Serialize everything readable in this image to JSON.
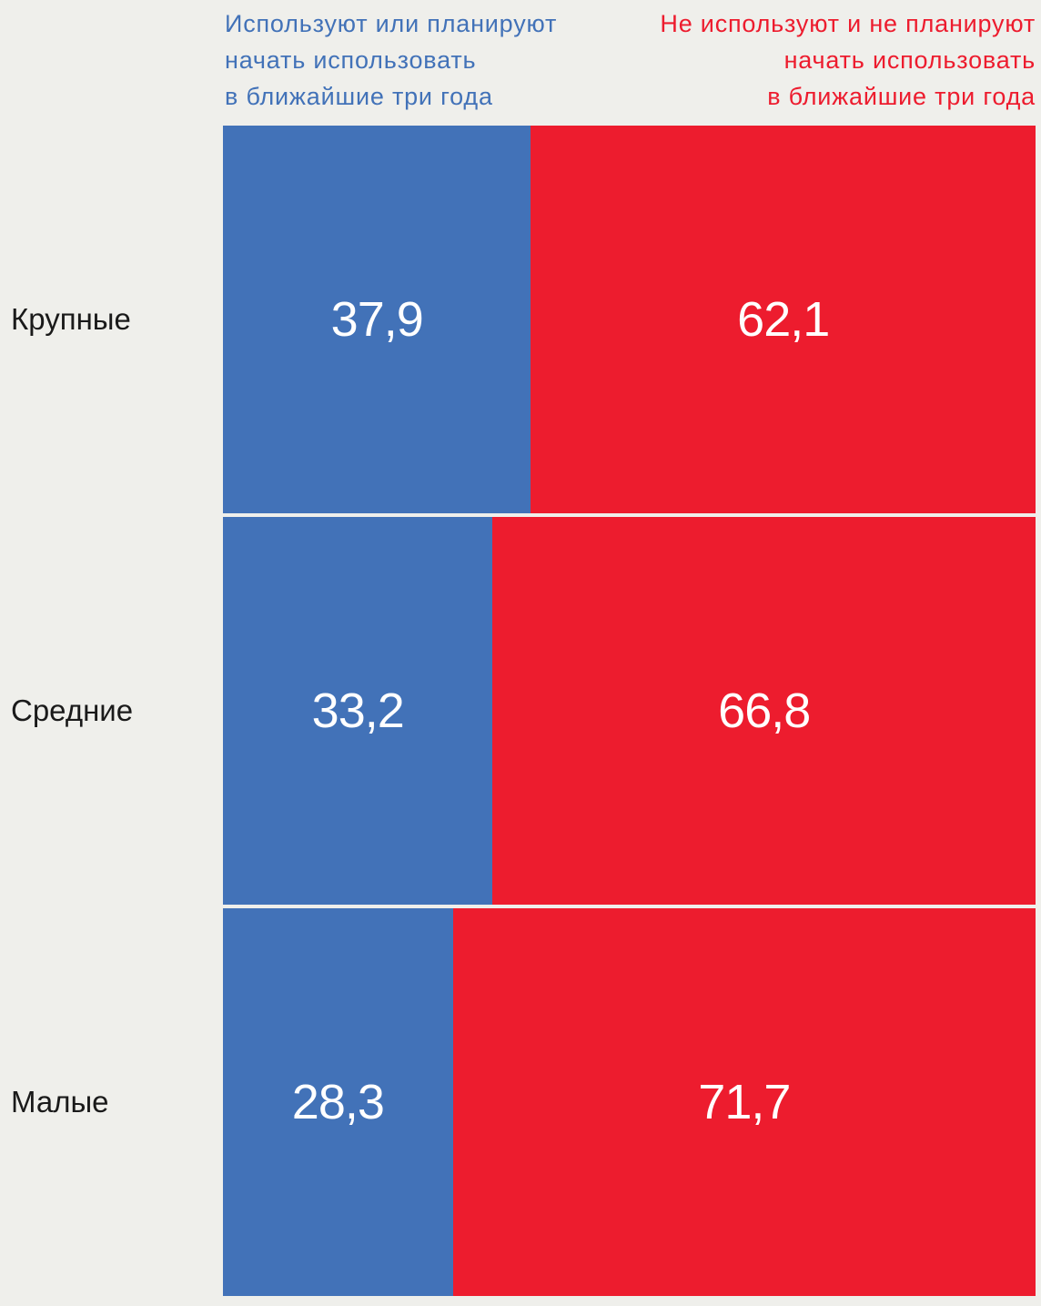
{
  "chart_data": {
    "type": "bar",
    "orientation": "horizontal",
    "stacked": "100%",
    "categories": [
      "Крупные",
      "Средние",
      "Малые"
    ],
    "series": [
      {
        "name": [
          "Используют или планируют",
          "начать использовать",
          "в ближайшие три года"
        ],
        "color": "#4272b8",
        "values": [
          37.9,
          33.2,
          28.3
        ],
        "labels": [
          "37,9",
          "33,2",
          "28,3"
        ]
      },
      {
        "name": [
          "Не используют и не планируют",
          "начать использовать",
          "в ближайшие три года"
        ],
        "color": "#ed1c2e",
        "values": [
          62.1,
          66.8,
          71.7
        ],
        "labels": [
          "62,1",
          "66,8",
          "71,7"
        ]
      }
    ],
    "xlim": [
      0,
      100
    ],
    "grid": false,
    "legend_placement": "top"
  }
}
